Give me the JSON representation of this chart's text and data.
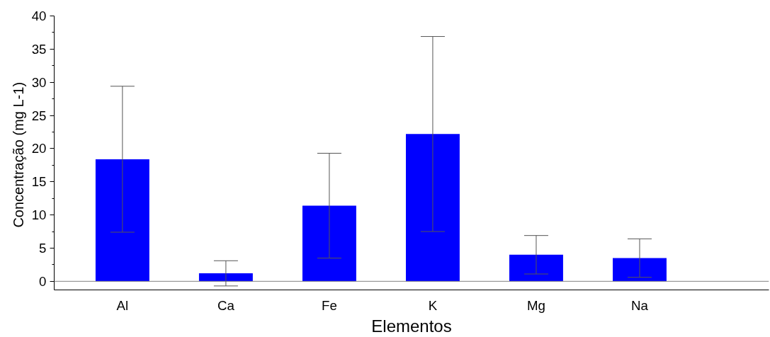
{
  "chart_data": {
    "type": "bar",
    "xlabel": "Elementos",
    "ylabel": "Concentração  (mg L-1)",
    "categories": [
      "Al",
      "Ca",
      "Fe",
      "K",
      "Mg",
      "Na"
    ],
    "values": [
      18.4,
      1.2,
      11.4,
      22.2,
      4.0,
      3.5
    ],
    "errors": [
      11.0,
      1.9,
      7.9,
      14.7,
      2.9,
      2.9
    ],
    "color": "#0000ff",
    "ylim": [
      -1.3,
      40
    ],
    "yticks": [
      0,
      5,
      10,
      15,
      20,
      25,
      30,
      35,
      40
    ],
    "ref_lines": [
      {
        "axis": "y",
        "value": 0,
        "color": "#808080"
      }
    ],
    "grid": false
  }
}
